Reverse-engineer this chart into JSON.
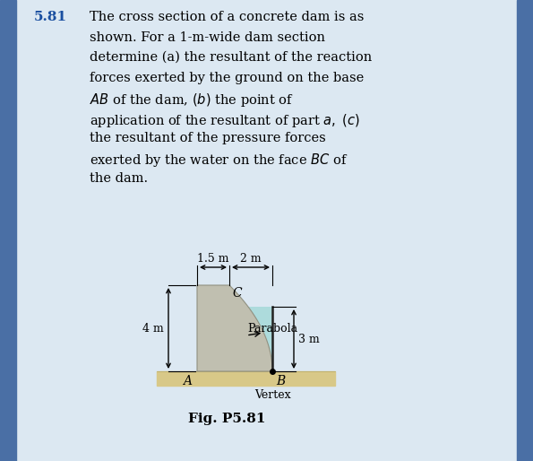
{
  "bg_color": "#ccd9e4",
  "panel_color": "#dce8f2",
  "border_color": "#4a6fa5",
  "title_number": "5.81",
  "title_color": "#1a4fa0",
  "fig_label": "Fig. P5.81",
  "dam_color": "#c0bfb0",
  "water_color": "#a8dada",
  "ground_color": "#d8c888",
  "dim_15": "1.5 m",
  "dim_2": "2 m",
  "dim_4": "4 m",
  "dim_3": "3 m",
  "label_A": "A",
  "label_B": "B",
  "label_C": "C",
  "label_parabola": "Parabola",
  "label_vertex": "Vertex",
  "text_lines": [
    "The cross section of a concrete dam is as",
    "shown. For a 1-m-wide dam section",
    "determine (a) the resultant of the reaction",
    "forces exerted by the ground on the base",
    "$AB$ of the dam, $(b)$ the point of",
    "application of the resultant of part $a,$ $(c)$",
    "the resultant of the pressure forces",
    "exerted by the water on the face $BC$ of",
    "the dam."
  ]
}
